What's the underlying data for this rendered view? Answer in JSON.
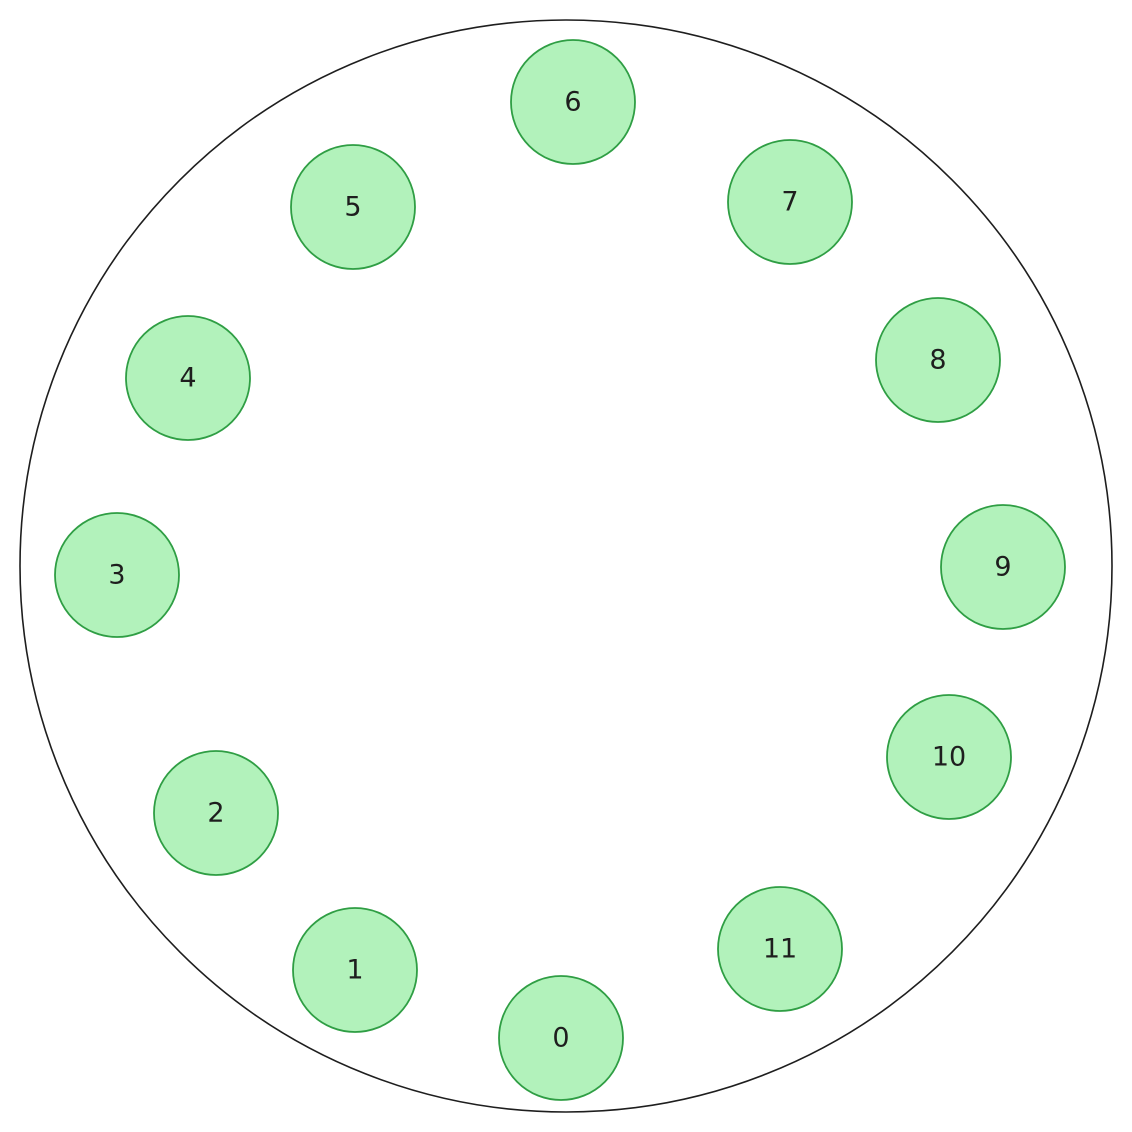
{
  "colors": {
    "node_fill": "#b2f2bb",
    "node_stroke": "#2f9e44",
    "ring_stroke": "#1e1e1e",
    "label": "#1e1e1e"
  },
  "nodes": [
    {
      "label": "0"
    },
    {
      "label": "1"
    },
    {
      "label": "2"
    },
    {
      "label": "3"
    },
    {
      "label": "4"
    },
    {
      "label": "5"
    },
    {
      "label": "6"
    },
    {
      "label": "7"
    },
    {
      "label": "8"
    },
    {
      "label": "9"
    },
    {
      "label": "10"
    },
    {
      "label": "11"
    }
  ]
}
